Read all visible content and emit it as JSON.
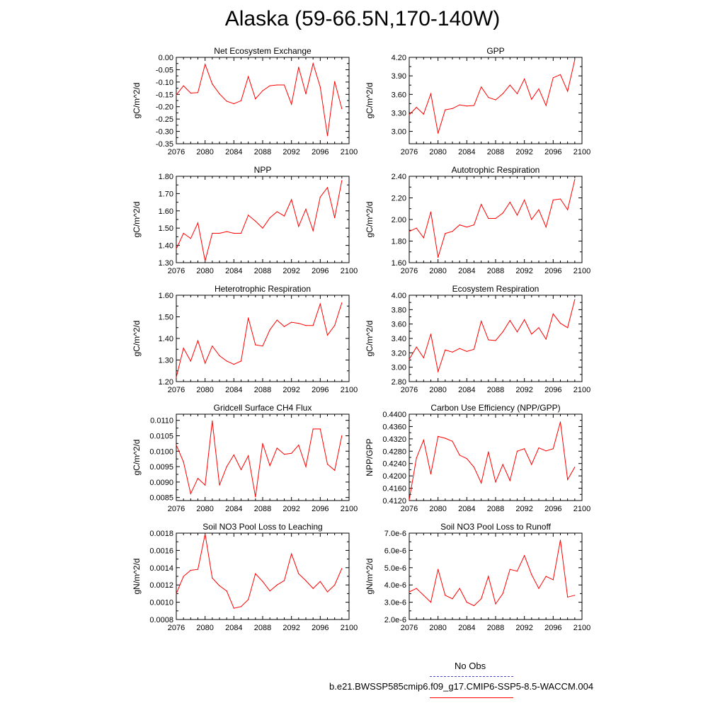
{
  "page_title": "Alaska (59-66.5N,170-140W)",
  "legend": {
    "obs_label": "No Obs",
    "obs_color": "#4a4ac8",
    "run_label": "b.e21.BWSSP585cmip6.f09_g17.CMIP6-SSP5-8.5-WACCM.004",
    "run_color": "#ff0000"
  },
  "chart_data": [
    {
      "type": "line",
      "title": "Net Ecosystem Exchange",
      "ylabel": "gC/m^2/d",
      "xlim": [
        2076,
        2100
      ],
      "x_ticks": [
        "2076",
        "2080",
        "2084",
        "2088",
        "2092",
        "2096",
        "2100"
      ],
      "ylim": [
        -0.35,
        0.0
      ],
      "y_ticks": [
        "0.00",
        "-0.05",
        "-0.10",
        "-0.15",
        "-0.20",
        "-0.25",
        "-0.30",
        "-0.35"
      ],
      "y_tick_values": [
        0.0,
        -0.05,
        -0.1,
        -0.15,
        -0.2,
        -0.25,
        -0.3,
        -0.35
      ],
      "x": [
        2076,
        2077,
        2078,
        2079,
        2080,
        2081,
        2082,
        2083,
        2084,
        2085,
        2086,
        2087,
        2088,
        2089,
        2090,
        2091,
        2092,
        2093,
        2094,
        2095,
        2096,
        2097,
        2098,
        2099
      ],
      "series": [
        {
          "values": [
            -0.152,
            -0.115,
            -0.145,
            -0.143,
            -0.028,
            -0.108,
            -0.148,
            -0.178,
            -0.188,
            -0.176,
            -0.078,
            -0.168,
            -0.135,
            -0.115,
            -0.112,
            -0.112,
            -0.19,
            -0.04,
            -0.148,
            -0.025,
            -0.12,
            -0.318,
            -0.098,
            -0.208
          ]
        }
      ]
    },
    {
      "type": "line",
      "title": "GPP",
      "ylabel": "gC/m^2/d",
      "xlim": [
        2076,
        2100
      ],
      "x_ticks": [
        "2076",
        "2080",
        "2084",
        "2088",
        "2092",
        "2096",
        "2100"
      ],
      "ylim": [
        2.8,
        4.2
      ],
      "y_ticks": [
        "4.20",
        "3.90",
        "3.60",
        "3.30",
        "3.00"
      ],
      "y_tick_values": [
        4.2,
        3.9,
        3.6,
        3.3,
        3.0
      ],
      "x": [
        2076,
        2077,
        2078,
        2079,
        2080,
        2081,
        2082,
        2083,
        2084,
        2085,
        2086,
        2087,
        2088,
        2089,
        2090,
        2091,
        2092,
        2093,
        2094,
        2095,
        2096,
        2097,
        2098,
        2099
      ],
      "series": [
        {
          "values": [
            3.27,
            3.39,
            3.28,
            3.61,
            2.97,
            3.35,
            3.37,
            3.43,
            3.41,
            3.42,
            3.72,
            3.55,
            3.51,
            3.61,
            3.75,
            3.61,
            3.85,
            3.52,
            3.69,
            3.42,
            3.87,
            3.92,
            3.65,
            4.16
          ]
        }
      ]
    },
    {
      "type": "line",
      "title": "NPP",
      "ylabel": "gC/m^2/d",
      "xlim": [
        2076,
        2100
      ],
      "x_ticks": [
        "2076",
        "2080",
        "2084",
        "2088",
        "2092",
        "2096",
        "2100"
      ],
      "ylim": [
        1.3,
        1.8
      ],
      "y_ticks": [
        "1.80",
        "1.70",
        "1.60",
        "1.50",
        "1.40",
        "1.30"
      ],
      "y_tick_values": [
        1.8,
        1.7,
        1.6,
        1.5,
        1.4,
        1.3
      ],
      "x": [
        2076,
        2077,
        2078,
        2079,
        2080,
        2081,
        2082,
        2083,
        2084,
        2085,
        2086,
        2087,
        2088,
        2089,
        2090,
        2091,
        2092,
        2093,
        2094,
        2095,
        2096,
        2097,
        2098,
        2099
      ],
      "series": [
        {
          "values": [
            1.38,
            1.47,
            1.44,
            1.53,
            1.31,
            1.47,
            1.47,
            1.48,
            1.47,
            1.47,
            1.575,
            1.54,
            1.5,
            1.56,
            1.595,
            1.57,
            1.665,
            1.51,
            1.61,
            1.485,
            1.68,
            1.735,
            1.56,
            1.775
          ]
        }
      ]
    },
    {
      "type": "line",
      "title": "Autotrophic Respiration",
      "ylabel": "gC/m^2/d",
      "xlim": [
        2076,
        2100
      ],
      "x_ticks": [
        "2076",
        "2080",
        "2084",
        "2088",
        "2092",
        "2096",
        "2100"
      ],
      "ylim": [
        1.6,
        2.4
      ],
      "y_ticks": [
        "2.40",
        "2.20",
        "2.00",
        "1.80",
        "1.60"
      ],
      "y_tick_values": [
        2.4,
        2.2,
        2.0,
        1.8,
        1.6
      ],
      "x": [
        2076,
        2077,
        2078,
        2079,
        2080,
        2081,
        2082,
        2083,
        2084,
        2085,
        2086,
        2087,
        2088,
        2089,
        2090,
        2091,
        2092,
        2093,
        2094,
        2095,
        2096,
        2097,
        2098,
        2099
      ],
      "series": [
        {
          "values": [
            1.89,
            1.92,
            1.83,
            2.07,
            1.65,
            1.87,
            1.89,
            1.95,
            1.93,
            1.95,
            2.14,
            2.01,
            2.01,
            2.06,
            2.16,
            2.04,
            2.18,
            2.0,
            2.09,
            1.93,
            2.18,
            2.19,
            2.09,
            2.37
          ]
        }
      ]
    },
    {
      "type": "line",
      "title": "Heterotrophic Respiration",
      "ylabel": "gC/m^2/d",
      "xlim": [
        2076,
        2100
      ],
      "x_ticks": [
        "2076",
        "2080",
        "2084",
        "2088",
        "2092",
        "2096",
        "2100"
      ],
      "ylim": [
        1.2,
        1.6
      ],
      "y_ticks": [
        "1.60",
        "1.50",
        "1.40",
        "1.30",
        "1.20"
      ],
      "y_tick_values": [
        1.6,
        1.5,
        1.4,
        1.3,
        1.2
      ],
      "x": [
        2076,
        2077,
        2078,
        2079,
        2080,
        2081,
        2082,
        2083,
        2084,
        2085,
        2086,
        2087,
        2088,
        2089,
        2090,
        2091,
        2092,
        2093,
        2094,
        2095,
        2096,
        2097,
        2098,
        2099
      ],
      "series": [
        {
          "values": [
            1.22,
            1.355,
            1.295,
            1.39,
            1.285,
            1.365,
            1.32,
            1.295,
            1.28,
            1.295,
            1.495,
            1.37,
            1.365,
            1.44,
            1.485,
            1.455,
            1.475,
            1.47,
            1.46,
            1.46,
            1.56,
            1.415,
            1.46,
            1.565
          ]
        }
      ]
    },
    {
      "type": "line",
      "title": "Ecosystem Respiration",
      "ylabel": "gC/m^2/d",
      "xlim": [
        2076,
        2100
      ],
      "x_ticks": [
        "2076",
        "2080",
        "2084",
        "2088",
        "2092",
        "2096",
        "2100"
      ],
      "ylim": [
        2.8,
        4.0
      ],
      "y_ticks": [
        "4.00",
        "3.80",
        "3.60",
        "3.40",
        "3.20",
        "3.00",
        "2.80"
      ],
      "y_tick_values": [
        4.0,
        3.8,
        3.6,
        3.4,
        3.2,
        3.0,
        2.8
      ],
      "x": [
        2076,
        2077,
        2078,
        2079,
        2080,
        2081,
        2082,
        2083,
        2084,
        2085,
        2086,
        2087,
        2088,
        2089,
        2090,
        2091,
        2092,
        2093,
        2094,
        2095,
        2096,
        2097,
        2098,
        2099
      ],
      "series": [
        {
          "values": [
            3.11,
            3.28,
            3.13,
            3.46,
            2.94,
            3.24,
            3.21,
            3.26,
            3.22,
            3.25,
            3.64,
            3.38,
            3.37,
            3.49,
            3.65,
            3.49,
            3.66,
            3.46,
            3.55,
            3.39,
            3.74,
            3.61,
            3.55,
            3.94
          ]
        }
      ]
    },
    {
      "type": "line",
      "title": "Gridcell Surface CH4 Flux",
      "ylabel": "gC/m^2/d",
      "xlim": [
        2076,
        2100
      ],
      "x_ticks": [
        "2076",
        "2080",
        "2084",
        "2088",
        "2092",
        "2096",
        "2100"
      ],
      "ylim": [
        0.0084,
        0.0112
      ],
      "y_ticks": [
        "0.0110",
        "0.0105",
        "0.0100",
        "0.0095",
        "0.0090",
        "0.0085"
      ],
      "y_tick_values": [
        0.011,
        0.0105,
        0.01,
        0.0095,
        0.009,
        0.0085
      ],
      "x": [
        2076,
        2077,
        2078,
        2079,
        2080,
        2081,
        2082,
        2083,
        2084,
        2085,
        2086,
        2087,
        2088,
        2089,
        2090,
        2091,
        2092,
        2093,
        2094,
        2095,
        2096,
        2097,
        2098,
        2099
      ],
      "series": [
        {
          "values": [
            0.0102,
            0.00965,
            0.00862,
            0.00912,
            0.0089,
            0.01098,
            0.0089,
            0.0095,
            0.00988,
            0.0094,
            0.00985,
            0.00852,
            0.01025,
            0.00953,
            0.0101,
            0.0099,
            0.00993,
            0.0102,
            0.0095,
            0.01072,
            0.01072,
            0.00958,
            0.00938,
            0.0105
          ]
        }
      ]
    },
    {
      "type": "line",
      "title": "Carbon Use Efficiency (NPP/GPP)",
      "ylabel": "NPP/GPP",
      "xlim": [
        2076,
        2100
      ],
      "x_ticks": [
        "2076",
        "2080",
        "2084",
        "2088",
        "2092",
        "2096",
        "2100"
      ],
      "ylim": [
        0.412,
        0.44
      ],
      "y_ticks": [
        "0.4400",
        "0.4360",
        "0.4320",
        "0.4280",
        "0.4240",
        "0.4200",
        "0.4160",
        "0.4120"
      ],
      "y_tick_values": [
        0.44,
        0.436,
        0.432,
        0.428,
        0.424,
        0.42,
        0.416,
        0.412
      ],
      "x": [
        2076,
        2077,
        2078,
        2079,
        2080,
        2081,
        2082,
        2083,
        2084,
        2085,
        2086,
        2087,
        2088,
        2089,
        2090,
        2091,
        2092,
        2093,
        2094,
        2095,
        2096,
        2097,
        2098,
        2099
      ],
      "series": [
        {
          "values": [
            0.4122,
            0.4258,
            0.4316,
            0.4206,
            0.4328,
            0.4322,
            0.4312,
            0.4267,
            0.4256,
            0.4228,
            0.4177,
            0.4278,
            0.418,
            0.4237,
            0.4185,
            0.428,
            0.4288,
            0.4237,
            0.4291,
            0.4281,
            0.4288,
            0.4375,
            0.4188,
            0.4228
          ]
        }
      ]
    },
    {
      "type": "line",
      "title": "Soil NO3 Pool Loss to Leaching",
      "ylabel": "gN/m^2/d",
      "xlim": [
        2076,
        2100
      ],
      "x_ticks": [
        "2076",
        "2080",
        "2084",
        "2088",
        "2092",
        "2096",
        "2100"
      ],
      "ylim": [
        0.0008,
        0.0018
      ],
      "y_ticks": [
        "0.0018",
        "0.0016",
        "0.0014",
        "0.0012",
        "0.0010",
        "0.0008"
      ],
      "y_tick_values": [
        0.0018,
        0.0016,
        0.0014,
        0.0012,
        0.001,
        0.0008
      ],
      "x": [
        2076,
        2077,
        2078,
        2079,
        2080,
        2081,
        2082,
        2083,
        2084,
        2085,
        2086,
        2087,
        2088,
        2089,
        2090,
        2091,
        2092,
        2093,
        2094,
        2095,
        2096,
        2097,
        2098,
        2099
      ],
      "series": [
        {
          "values": [
            0.0011,
            0.0013,
            0.00137,
            0.00138,
            0.00179,
            0.00128,
            0.00119,
            0.00113,
            0.00093,
            0.00095,
            0.00103,
            0.00133,
            0.00124,
            0.00113,
            0.0012,
            0.00125,
            0.00156,
            0.00133,
            0.00125,
            0.00116,
            0.00124,
            0.00112,
            0.0012,
            0.00139
          ]
        }
      ]
    },
    {
      "type": "line",
      "title": "Soil NO3 Pool Loss to Runoff",
      "ylabel": "gN/m^2/d",
      "xlim": [
        2076,
        2100
      ],
      "x_ticks": [
        "2076",
        "2080",
        "2084",
        "2088",
        "2092",
        "2096",
        "2100"
      ],
      "ylim": [
        2e-06,
        7e-06
      ],
      "y_ticks": [
        "7.0e-6",
        "6.0e-6",
        "5.0e-6",
        "4.0e-6",
        "3.0e-6",
        "2.0e-6"
      ],
      "y_tick_values": [
        7e-06,
        6e-06,
        5e-06,
        4e-06,
        3e-06,
        2e-06
      ],
      "x": [
        2076,
        2077,
        2078,
        2079,
        2080,
        2081,
        2082,
        2083,
        2084,
        2085,
        2086,
        2087,
        2088,
        2089,
        2090,
        2091,
        2092,
        2093,
        2094,
        2095,
        2096,
        2097,
        2098,
        2099
      ],
      "series": [
        {
          "values": [
            3.6e-06,
            3.8e-06,
            3.4e-06,
            3e-06,
            4.9e-06,
            3.4e-06,
            3.2e-06,
            3.8e-06,
            3e-06,
            2.8e-06,
            3.2e-06,
            4.5e-06,
            2.9e-06,
            3.5e-06,
            4.9e-06,
            4.8e-06,
            5.7e-06,
            4.6e-06,
            3.8e-06,
            4.5e-06,
            4.3e-06,
            6.6e-06,
            3.3e-06,
            3.4e-06
          ]
        }
      ]
    }
  ]
}
